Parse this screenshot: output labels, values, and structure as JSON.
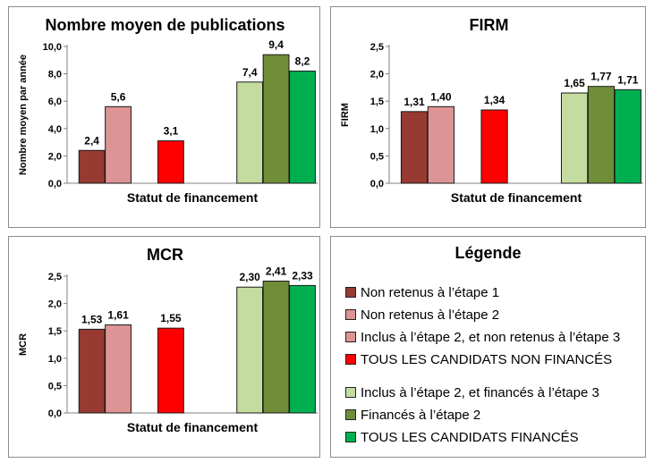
{
  "colors": {
    "non_retenus_1": "#963a32",
    "non_retenus_2": "#dc9494",
    "inclus_non_retenus_3": "#dc9494",
    "tous_non_finances": "#ff0000",
    "inclus_finances_3": "#c4dca0",
    "finances_2": "#6f8e37",
    "tous_finances": "#00b050"
  },
  "chart_data": [
    {
      "type": "bar",
      "title": "Nombre moyen  de publications",
      "ylabel": "Nombre moyen par année",
      "xlabel": "Statut de financement",
      "ylim": [
        0,
        10
      ],
      "yticks": [
        "0,0",
        "2,0",
        "4,0",
        "6,0",
        "8,0",
        "10,0"
      ],
      "grid": false,
      "bars": [
        {
          "series": "Non retenus à l’étape 1",
          "value": 2.4,
          "label": "2,4",
          "color": "#963a32"
        },
        {
          "series": "Non retenus à l’étape 2",
          "value": 5.6,
          "label": "5,6",
          "color": "#dc9494"
        },
        {
          "series": "TOUS LES CANDIDATS NON FINANCÉS",
          "value": 3.1,
          "label": "3,1",
          "color": "#ff0000"
        },
        {
          "series": "Inclus à l’étape 2, et financés à l’étape 3",
          "value": 7.4,
          "label": "7,4",
          "color": "#c4dca0"
        },
        {
          "series": "Financés à l’étape 2",
          "value": 9.4,
          "label": "9,4",
          "color": "#6f8e37"
        },
        {
          "series": "TOUS LES CANDIDATS FINANCÉS",
          "value": 8.2,
          "label": "8,2",
          "color": "#00b050"
        }
      ]
    },
    {
      "type": "bar",
      "title": "FIRM",
      "ylabel": "FIRM",
      "xlabel": "Statut de financement",
      "ylim": [
        0,
        2.5
      ],
      "yticks": [
        "0,0",
        "0,5",
        "1,0",
        "1,5",
        "2,0",
        "2,5"
      ],
      "grid": false,
      "bars": [
        {
          "series": "Non retenus à l’étape 1",
          "value": 1.31,
          "label": "1,31",
          "color": "#963a32"
        },
        {
          "series": "Non retenus à l’étape 2",
          "value": 1.4,
          "label": "1,40",
          "color": "#dc9494"
        },
        {
          "series": "TOUS LES CANDIDATS NON FINANCÉS",
          "value": 1.34,
          "label": "1,34",
          "color": "#ff0000"
        },
        {
          "series": "Inclus à l’étape 2, et financés à l’étape 3",
          "value": 1.65,
          "label": "1,65",
          "color": "#c4dca0"
        },
        {
          "series": "Financés à l’étape 2",
          "value": 1.77,
          "label": "1,77",
          "color": "#6f8e37"
        },
        {
          "series": "TOUS LES CANDIDATS FINANCÉS",
          "value": 1.71,
          "label": "1,71",
          "color": "#00b050"
        }
      ]
    },
    {
      "type": "bar",
      "title": "MCR",
      "ylabel": "MCR",
      "xlabel": "Statut de financement",
      "ylim": [
        0,
        2.5
      ],
      "yticks": [
        "0,0",
        "0,5",
        "1,0",
        "1,5",
        "2,0",
        "2,5"
      ],
      "grid": false,
      "bars": [
        {
          "series": "Non retenus à l’étape 1",
          "value": 1.53,
          "label": "1,53",
          "color": "#963a32"
        },
        {
          "series": "Non retenus à l’étape 2",
          "value": 1.61,
          "label": "1,61",
          "color": "#dc9494"
        },
        {
          "series": "TOUS LES CANDIDATS NON FINANCÉS",
          "value": 1.55,
          "label": "1,55",
          "color": "#ff0000"
        },
        {
          "series": "Inclus à l’étape 2, et financés à l’étape 3",
          "value": 2.3,
          "label": "2,30",
          "color": "#c4dca0"
        },
        {
          "series": "Financés à l’étape 2",
          "value": 2.41,
          "label": "2,41",
          "color": "#6f8e37"
        },
        {
          "series": "TOUS LES CANDIDATS FINANCÉS",
          "value": 2.33,
          "label": "2,33",
          "color": "#00b050"
        }
      ]
    }
  ],
  "legend": {
    "title": "Légende",
    "items": [
      {
        "label": "Non retenus à l’étape 1",
        "color": "#963a32"
      },
      {
        "label": "Non retenus à l’étape 2",
        "color": "#dc9494"
      },
      {
        "label": "Inclus à l’étape 2, et non retenus à l’étape 3",
        "color": "#dc9494"
      },
      {
        "label": "TOUS LES CANDIDATS NON FINANCÉS",
        "color": "#ff0000"
      },
      {
        "label": "Inclus à l’étape 2, et financés à l’étape 3",
        "color": "#c4dca0"
      },
      {
        "label": "Financés à l’étape 2",
        "color": "#6f8e37"
      },
      {
        "label": "TOUS LES CANDIDATS FINANCÉS",
        "color": "#00b050"
      }
    ]
  }
}
